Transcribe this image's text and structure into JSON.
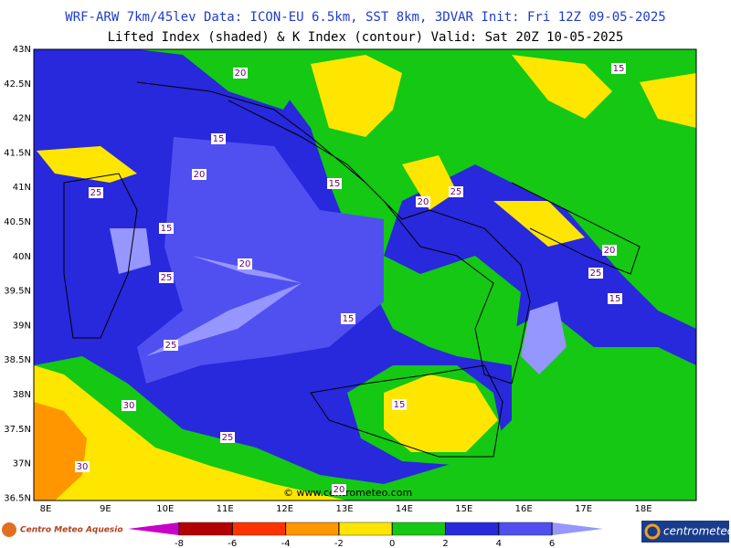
{
  "header": {
    "title": "WRF-ARW 7km/45lev  Data: ICON-EU 6.5km, SST 8km, 3DVAR  Init: Fri 12Z 09-05-2025",
    "subtitle": "Lifted Index (shaded) & K Index (contour)  Valid: Sat 20Z 10-05-2025"
  },
  "map": {
    "lat_labels": [
      "43N",
      "42.5N",
      "42N",
      "41.5N",
      "41N",
      "40.5N",
      "40N",
      "39.5N",
      "39N",
      "38.5N",
      "38N",
      "37.5N",
      "37N",
      "36.5N"
    ],
    "lon_labels": [
      "8E",
      "9E",
      "10E",
      "11E",
      "12E",
      "13E",
      "14E",
      "15E",
      "16E",
      "17E",
      "18E"
    ],
    "contour_labels": [
      "20",
      "15",
      "15",
      "20",
      "15",
      "25",
      "20",
      "25",
      "15",
      "20",
      "20",
      "25",
      "25",
      "15",
      "15",
      "25",
      "30",
      "15",
      "25",
      "30",
      "20"
    ],
    "credit": "© www.centrometeo.com"
  },
  "colorbar": {
    "ticks": [
      -8,
      -6,
      -4,
      -2,
      0,
      2,
      4,
      6
    ],
    "colors": [
      "#c800c8",
      "#b40000",
      "#ff3200",
      "#ff9600",
      "#ffe600",
      "#14c814",
      "#2828dc",
      "#5050f0",
      "#9696ff"
    ]
  },
  "footer": {
    "left_logo": "Centro Meteo Aquesio",
    "right_logo": "centrometeo"
  }
}
